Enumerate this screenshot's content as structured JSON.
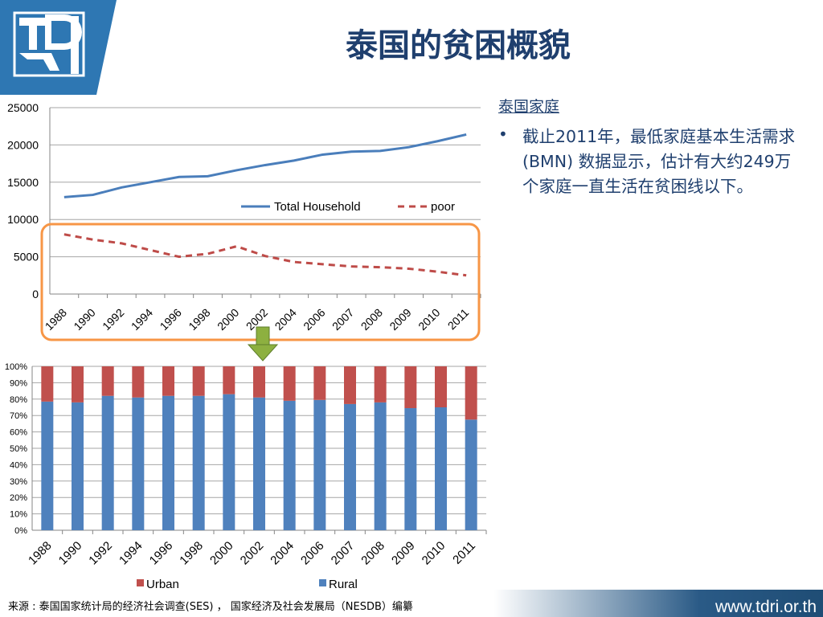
{
  "title": "泰国的贫困概貌",
  "side": {
    "heading": "泰国家庭",
    "bullet_symbol": "•",
    "bullet_text": "截止2011年，最低家庭基本生活需求(BMN) 数据显示，估计有大约249万个家庭一直生活在贫困线以下。"
  },
  "footer": {
    "source": "来源 : 泰国国家统计局的经济社会调查(SES) ， 国家经济及社会发展局（NESDB）编纂",
    "site": "www.tdri.or.th"
  },
  "colors": {
    "title": "#1f3f6e",
    "household_line": "#4a7ebb",
    "poor_line": "#be4b48",
    "rural_bar": "#4f81bd",
    "urban_bar": "#c0504d",
    "highlight_box": "#f79646",
    "arrow": "#8db040",
    "logo_blue": "#2e77b3"
  },
  "chart_data": [
    {
      "type": "line",
      "categories": [
        "1988",
        "1990",
        "1992",
        "1994",
        "1996",
        "1998",
        "2000",
        "2002",
        "2004",
        "2006",
        "2007",
        "2008",
        "2009",
        "2010",
        "2011"
      ],
      "series": [
        {
          "name": "Total Household",
          "values": [
            13000,
            13300,
            14300,
            15000,
            15700,
            15800,
            16600,
            17300,
            17900,
            18700,
            19100,
            19200,
            19700,
            20500,
            21400
          ]
        },
        {
          "name": "poor",
          "values": [
            8000,
            7300,
            6800,
            5900,
            5000,
            5400,
            6400,
            5100,
            4300,
            4000,
            3700,
            3600,
            3400,
            3000,
            2500
          ]
        }
      ],
      "yticks": [
        "0",
        "5000",
        "10000",
        "15000",
        "20000",
        "25000"
      ],
      "ylim": [
        0,
        25000
      ],
      "legend": "inside-right",
      "grid": true
    },
    {
      "type": "bar",
      "stacked": true,
      "categories": [
        "1988",
        "1990",
        "1992",
        "1994",
        "1996",
        "1998",
        "2000",
        "2002",
        "2004",
        "2006",
        "2007",
        "2008",
        "2009",
        "2010",
        "2011"
      ],
      "series": [
        {
          "name": "Rural",
          "values": [
            78.5,
            78,
            82,
            81,
            82,
            82,
            83,
            81,
            79,
            79.5,
            77,
            78,
            74.5,
            75,
            67.5
          ]
        },
        {
          "name": "Urban",
          "values": [
            21.5,
            22,
            18,
            19,
            18,
            18,
            17,
            19,
            21,
            20.5,
            23,
            22,
            25.5,
            25,
            32.5
          ]
        }
      ],
      "yticks": [
        "0%",
        "10%",
        "20%",
        "30%",
        "40%",
        "50%",
        "60%",
        "70%",
        "80%",
        "90%",
        "100%"
      ],
      "ylim": [
        0,
        100
      ],
      "legend": "bottom",
      "grid": true
    }
  ]
}
